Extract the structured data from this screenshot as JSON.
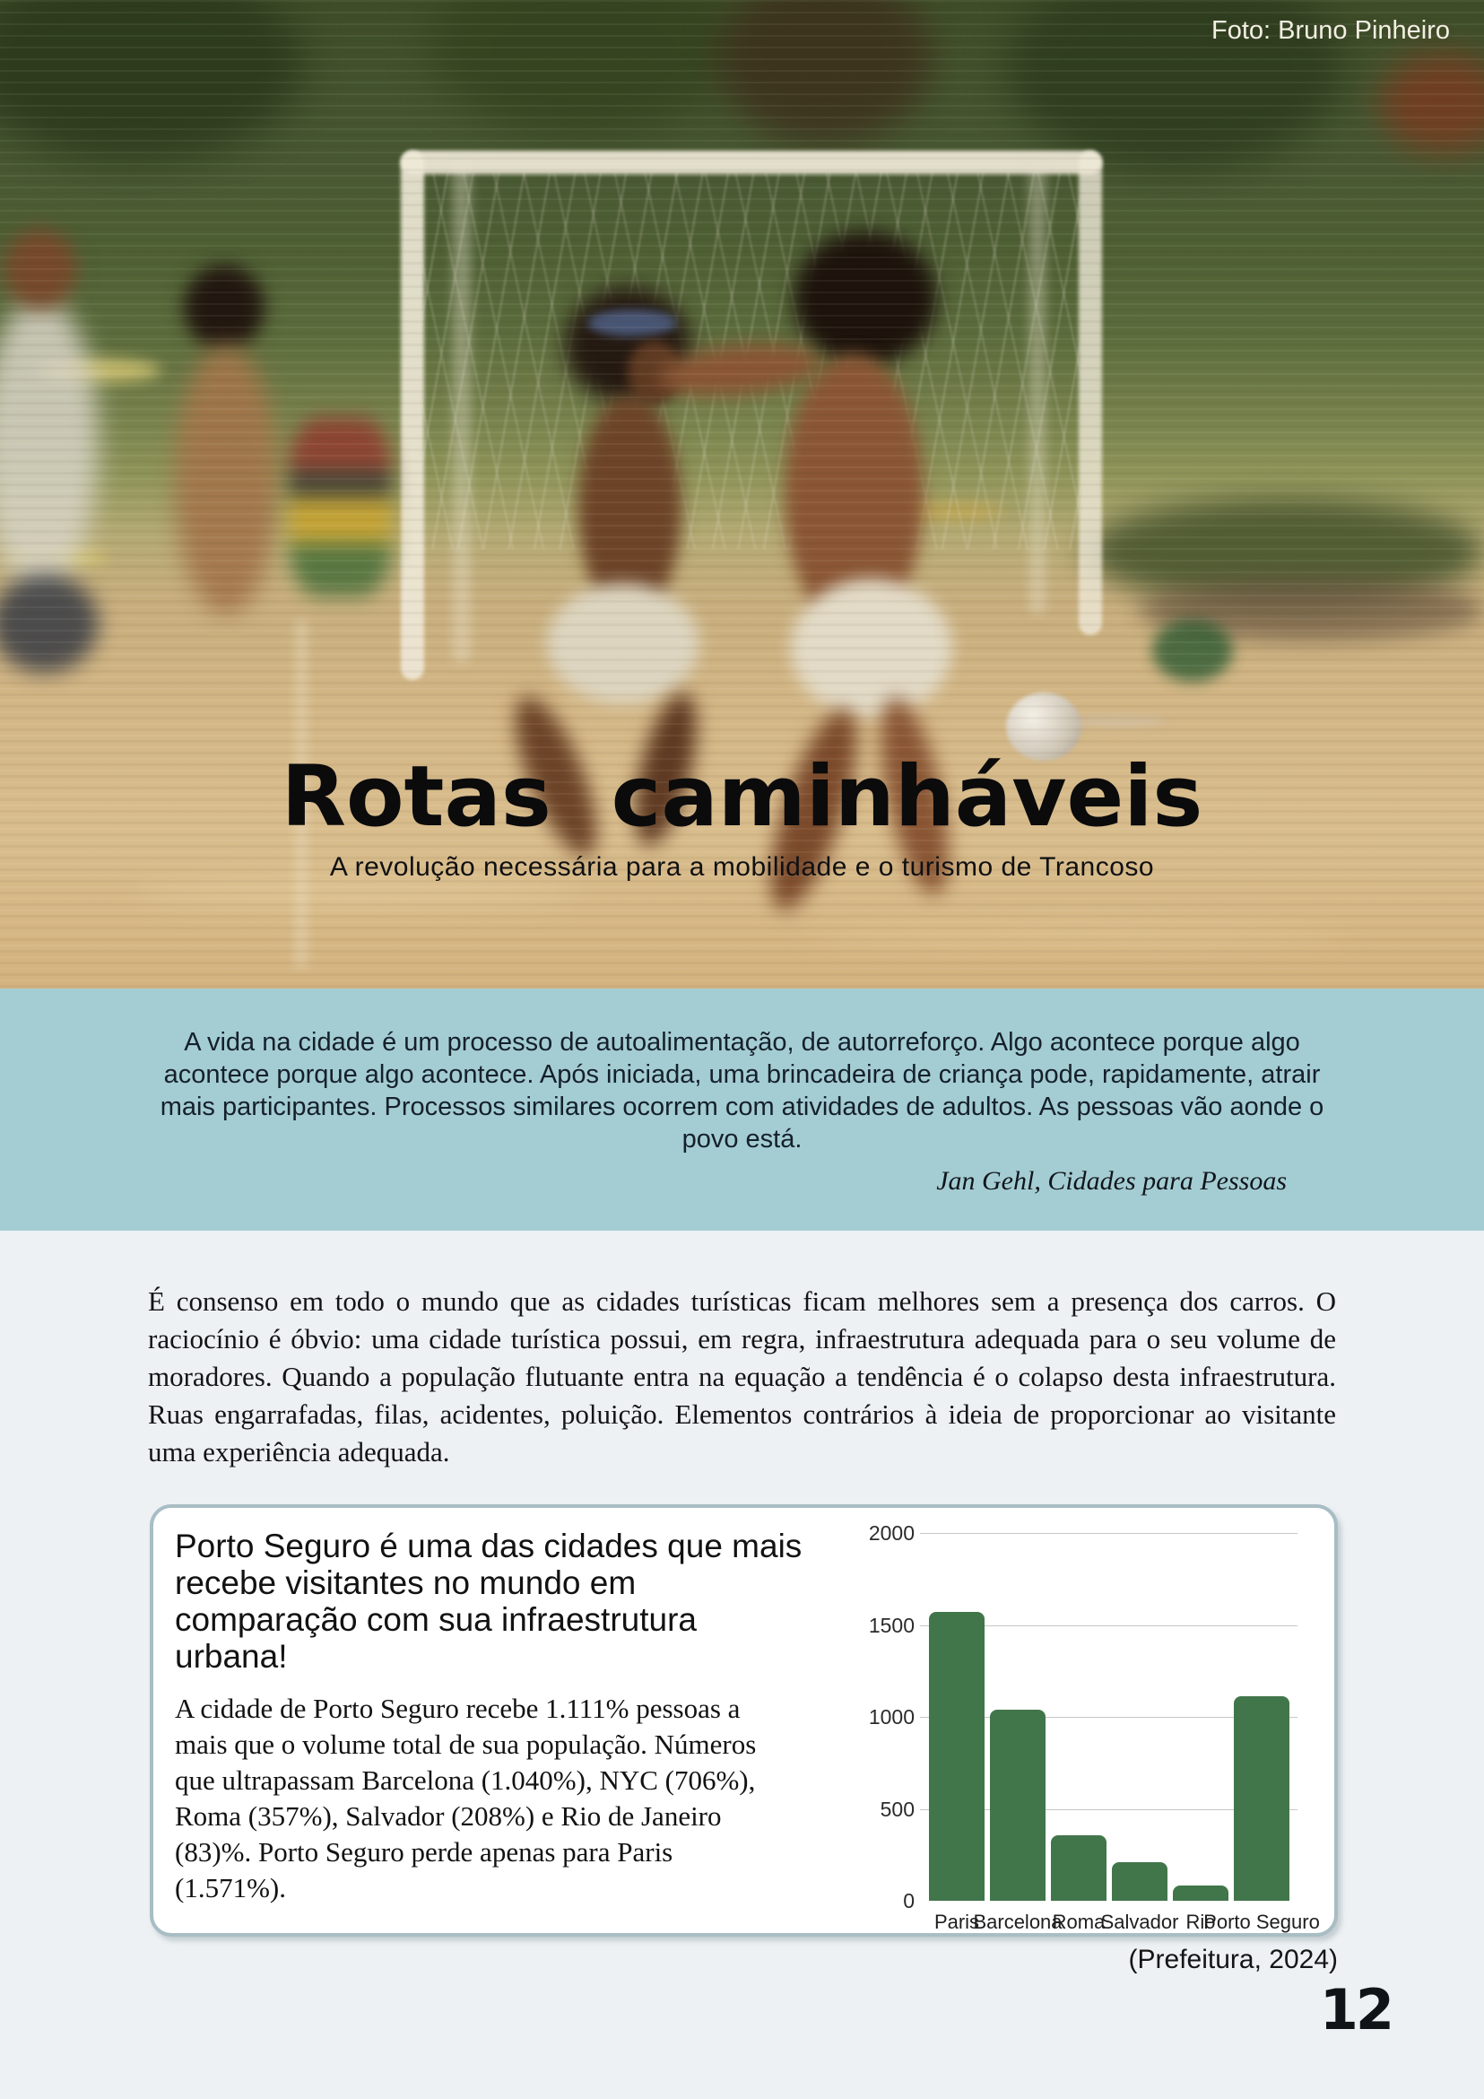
{
  "photo": {
    "credit": "Foto: Bruno Pinheiro"
  },
  "header": {
    "title": "Rotas caminháveis",
    "subtitle": "A revolução necessária para a mobilidade e o turismo de Trancoso"
  },
  "quote": {
    "text": "A vida na cidade é um processo de autoalimentação, de autorreforço. Algo acontece porque algo acontece porque algo acontece. Após iniciada, uma brincadeira de criança pode, rapidamente, atrair mais participantes. Processos similares ocorrem com atividades de adultos. As pessoas vão aonde o povo está.",
    "attribution": "Jan Gehl, Cidades para Pessoas"
  },
  "article": {
    "paragraph": "É consenso em todo o mundo que as cidades turísticas ficam melhores sem a presença dos carros. O raciocínio é óbvio: uma cidade turística possui, em regra, infraestrutura adequada para o seu volume de moradores. Quando a população flutuante entra na equação a tendência é o colapso desta infraestrutura. Ruas engarrafadas, filas, acidentes, poluição. Elementos contrários à ideia de proporcionar ao visitante uma experiência adequada."
  },
  "infocard": {
    "heading": "Porto Seguro é uma das cidades que mais recebe visitantes no mundo em comparação com sua infraestrutura urbana!",
    "body": "A cidade de Porto Seguro recebe 1.111% pessoas a mais que o volume total de sua população. Números que ultrapassam Barcelona (1.040%), NYC (706%), Roma (357%), Salvador (208%) e Rio de Janeiro (83)%. Porto Seguro perde apenas para Paris (1.571%).",
    "source": "(Prefeitura, 2024)"
  },
  "chart_data": {
    "type": "bar",
    "categories": [
      "Paris",
      "Barcelona",
      "Roma",
      "Salvador",
      "Rio",
      "Porto Seguro"
    ],
    "values": [
      1571,
      1040,
      357,
      208,
      83,
      1111
    ],
    "title": "",
    "xlabel": "",
    "ylabel": "",
    "ylim": [
      0,
      2000
    ],
    "yticks": [
      0,
      500,
      1000,
      1500,
      2000
    ],
    "grid": true,
    "legend": false,
    "bar_color": "#41764a"
  },
  "page": {
    "number": "12"
  },
  "colors": {
    "quote_band_bg": "#a4cdd3",
    "page_bg": "#edf1f4",
    "bar_green": "#41764a",
    "card_border": "#a8bdc4"
  }
}
